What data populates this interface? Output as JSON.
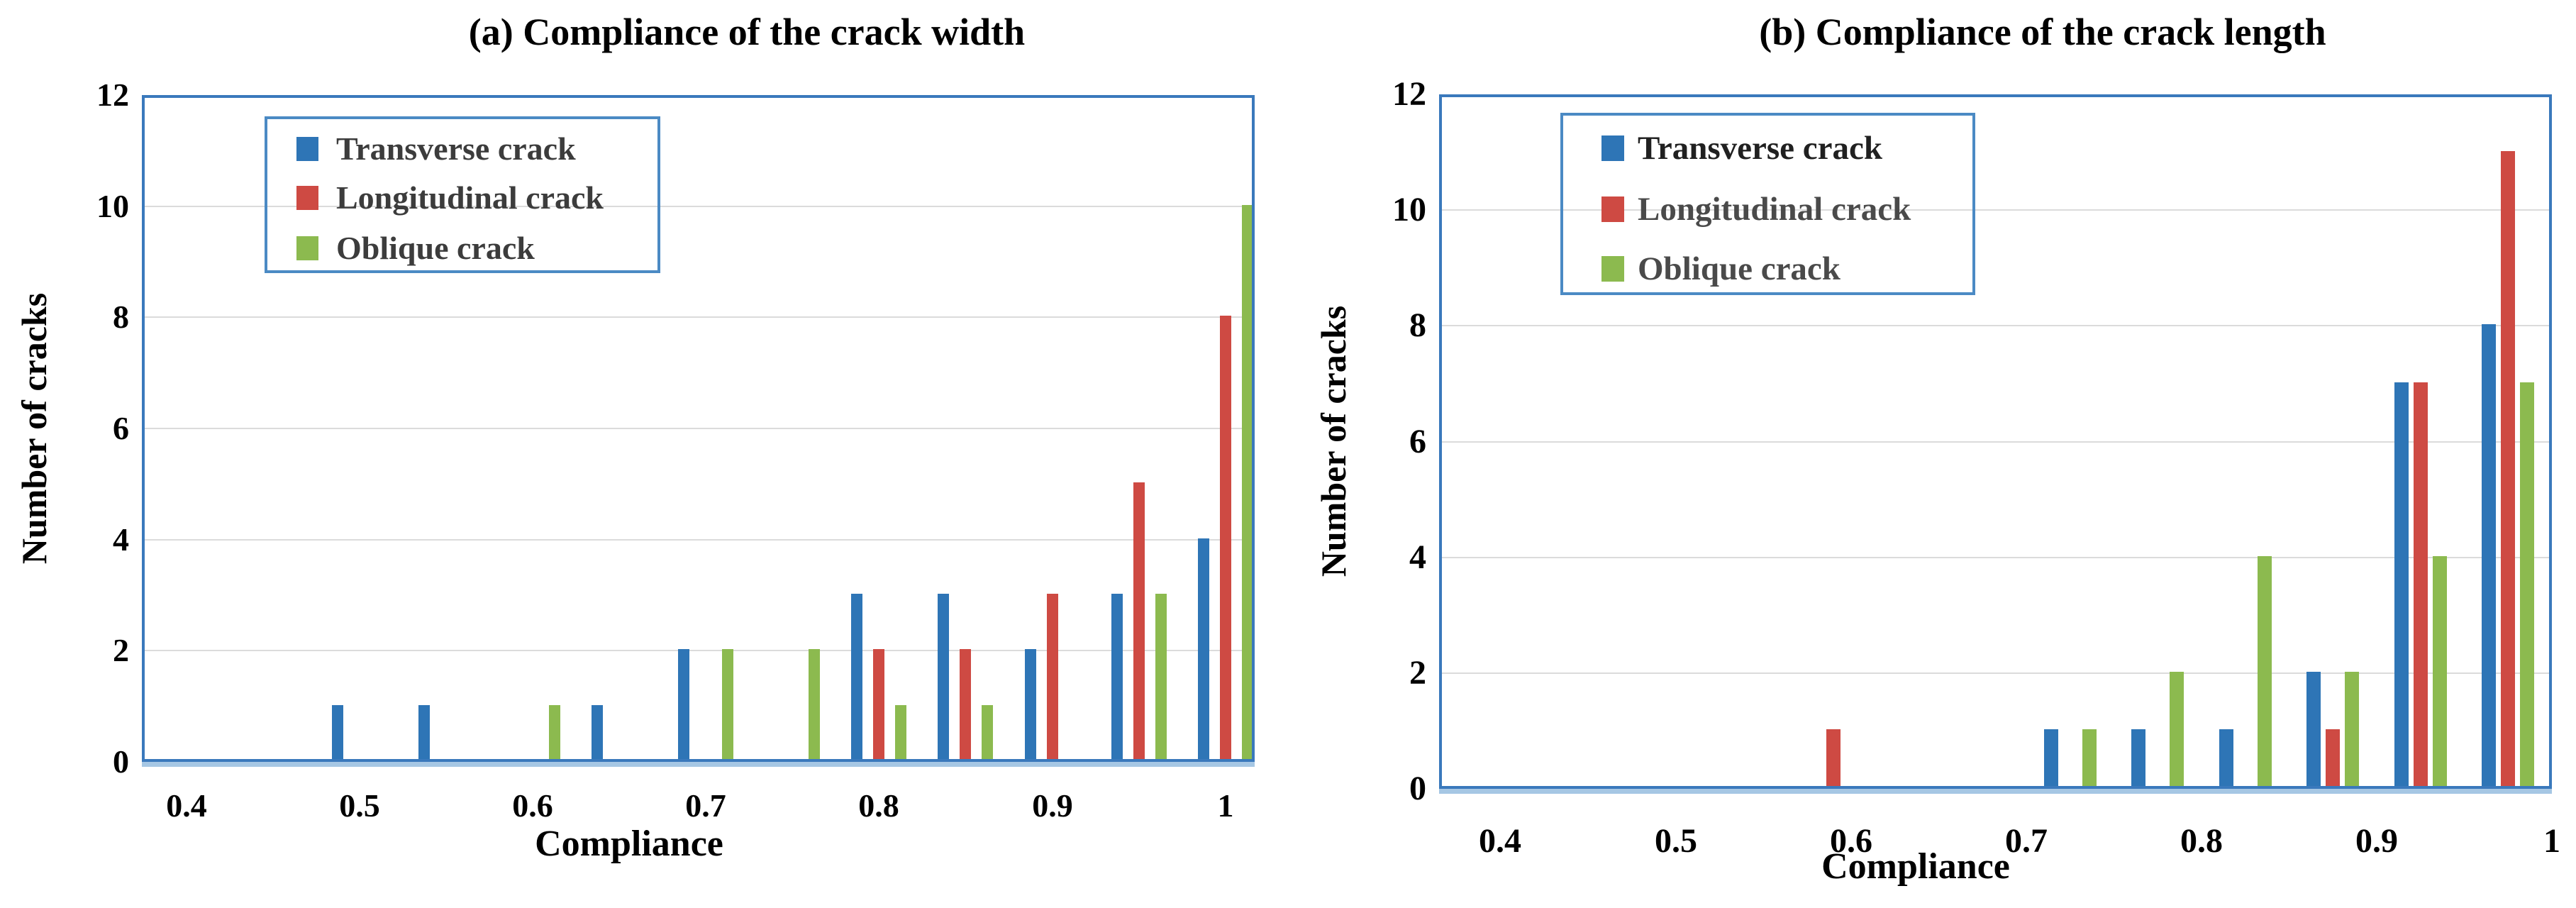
{
  "figure": {
    "background": "#FFFFFF",
    "description_left": "(a) Compliance of the crack width",
    "description_right": "(b) Compliance of the crack length"
  },
  "styles": {
    "plot_border": "#3A79BC",
    "legend_border": "#4B8AC4",
    "gridline": "#DBDBDB",
    "axis_band": "#A6C7E4",
    "tick_text": "#000000"
  },
  "chart_data": [
    {
      "type": "bar",
      "panel": "a",
      "title": "(a) Compliance of the crack width",
      "xlabel": "Compliance",
      "ylabel": "Number of cracks",
      "ylim": [
        0,
        12
      ],
      "xlim": [
        0.374,
        1.017
      ],
      "grid": "horizontal",
      "legend_position": "upper-left-inside",
      "bin_width": 0.05,
      "y_ticks": [
        0,
        2,
        4,
        6,
        8,
        10,
        12
      ],
      "x_ticks": [
        {
          "label": "0.4",
          "value": 0.4
        },
        {
          "label": "0.5",
          "value": 0.5
        },
        {
          "label": "0.6",
          "value": 0.6
        },
        {
          "label": "0.7",
          "value": 0.7
        },
        {
          "label": "0.8",
          "value": 0.8
        },
        {
          "label": "0.9",
          "value": 0.9
        },
        {
          "label": "1",
          "value": 1.0
        }
      ],
      "categories": [
        0.5,
        0.55,
        0.6,
        0.65,
        0.7,
        0.75,
        0.8,
        0.85,
        0.9,
        0.95,
        1.0
      ],
      "series": [
        {
          "name": "Transverse crack",
          "color": "#2E75B6",
          "label_color": "#3C3C3C",
          "values": [
            1,
            1,
            0,
            1,
            2,
            0,
            3,
            3,
            2,
            3,
            4
          ]
        },
        {
          "name": "Longitudinal crack",
          "color": "#CE4A43",
          "label_color": "#3C3C3C",
          "values": [
            0,
            0,
            0,
            0,
            0,
            0,
            2,
            2,
            3,
            5,
            8
          ]
        },
        {
          "name": "Oblique crack",
          "color": "#8CBA4F",
          "label_color": "#3C3C3C",
          "values": [
            0,
            0,
            1,
            0,
            2,
            2,
            1,
            1,
            0,
            3,
            10
          ]
        }
      ]
    },
    {
      "type": "bar",
      "panel": "b",
      "title": "(b) Compliance of the crack length",
      "xlabel": "Compliance",
      "ylabel": "Number of cracks",
      "ylim": [
        0,
        12
      ],
      "xlim": [
        0.365,
        1.0
      ],
      "grid": "horizontal",
      "legend_position": "upper-left-inside",
      "bin_width": 0.05,
      "y_ticks": [
        0,
        2,
        4,
        6,
        8,
        10,
        12
      ],
      "x_ticks": [
        {
          "label": "0.4",
          "value": 0.4
        },
        {
          "label": "0.5",
          "value": 0.5
        },
        {
          "label": "0.6",
          "value": 0.6
        },
        {
          "label": "0.7",
          "value": 0.7
        },
        {
          "label": "0.8",
          "value": 0.8
        },
        {
          "label": "0.9",
          "value": 0.9
        },
        {
          "label": "1",
          "value": 1.0
        }
      ],
      "categories": [
        0.59,
        0.725,
        0.775,
        0.825,
        0.875,
        0.925,
        0.975
      ],
      "series": [
        {
          "name": "Transverse crack",
          "color": "#2E75B6",
          "label_color": "#202020",
          "values": [
            0,
            1,
            1,
            1,
            2,
            7,
            8
          ]
        },
        {
          "name": "Longitudinal crack",
          "color": "#CE4A43",
          "label_color": "#4A4A4A",
          "values": [
            1,
            0,
            0,
            0,
            1,
            7,
            11
          ]
        },
        {
          "name": "Oblique crack",
          "color": "#8CBA4F",
          "label_color": "#4A4A4A",
          "values": [
            0,
            1,
            2,
            4,
            2,
            4,
            7
          ]
        }
      ]
    }
  ]
}
